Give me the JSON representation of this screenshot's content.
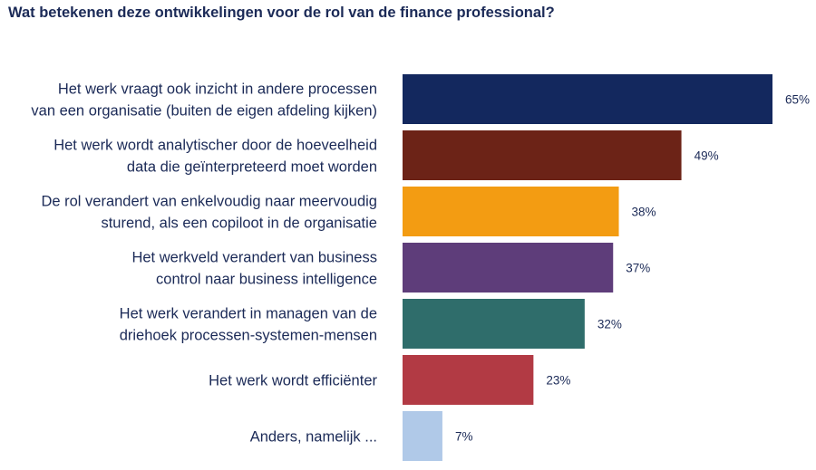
{
  "chart_data": {
    "type": "bar",
    "orientation": "horizontal",
    "title": "Wat betekenen deze ontwikkelingen voor de rol van de finance professional?",
    "xlabel": "",
    "ylabel": "",
    "xlim": [
      0,
      65
    ],
    "grid": false,
    "legend": "none",
    "categories": [
      [
        "Het werk vraagt ook inzicht in andere processen",
        "van een organisatie (buiten de eigen afdeling kijken)"
      ],
      [
        "Het werk wordt analytischer door de hoeveelheid",
        "data die geïnterpreteerd moet worden"
      ],
      [
        "De rol verandert van enkelvoudig naar meervoudig",
        "sturend, als een copiloot in de organisatie"
      ],
      [
        "Het werkveld verandert van business",
        "control naar business intelligence"
      ],
      [
        "Het werk verandert in managen van de",
        "driehoek processen-systemen-mensen"
      ],
      [
        "Het werk wordt efficiënter"
      ],
      [
        "Anders, namelijk ..."
      ]
    ],
    "values": [
      65,
      49,
      38,
      37,
      32,
      23,
      7
    ],
    "value_labels": [
      "65%",
      "49%",
      "38%",
      "37%",
      "32%",
      "23%",
      "7%"
    ],
    "colors": [
      "#13285e",
      "#6c2317",
      "#f39c12",
      "#5e3d7a",
      "#2f6d6b",
      "#b23a44",
      "#b0c9e8"
    ],
    "label_color": "#1b2a57"
  }
}
